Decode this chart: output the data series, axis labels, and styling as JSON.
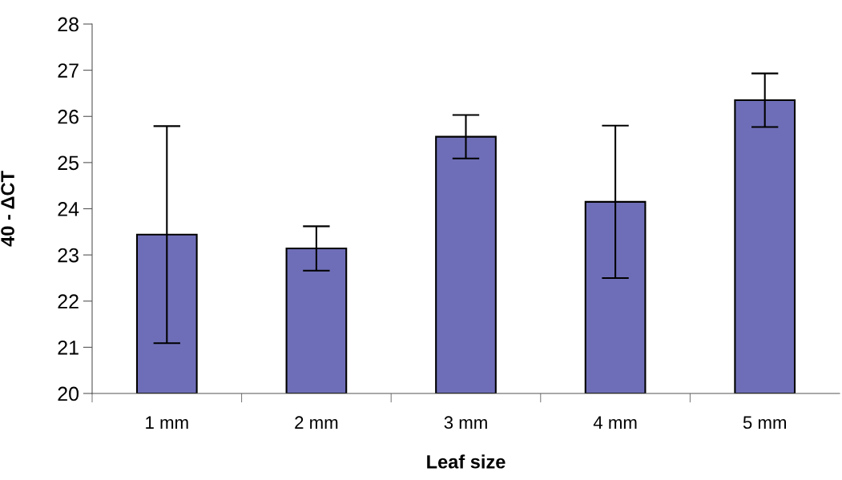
{
  "chart_data": {
    "type": "bar",
    "xlabel": "Leaf size",
    "ylabel": "40 - ΔCT",
    "categories": [
      "1 mm",
      "2 mm",
      "3 mm",
      "4 mm",
      "5 mm"
    ],
    "values": [
      23.44,
      23.14,
      25.56,
      24.15,
      26.35
    ],
    "errors": [
      2.35,
      0.48,
      0.47,
      1.65,
      0.58
    ],
    "color": "#6e6eb8",
    "ylim": [
      20,
      28
    ],
    "yticks": [
      20,
      21,
      22,
      23,
      24,
      25,
      26,
      27,
      28
    ],
    "grid": false
  }
}
